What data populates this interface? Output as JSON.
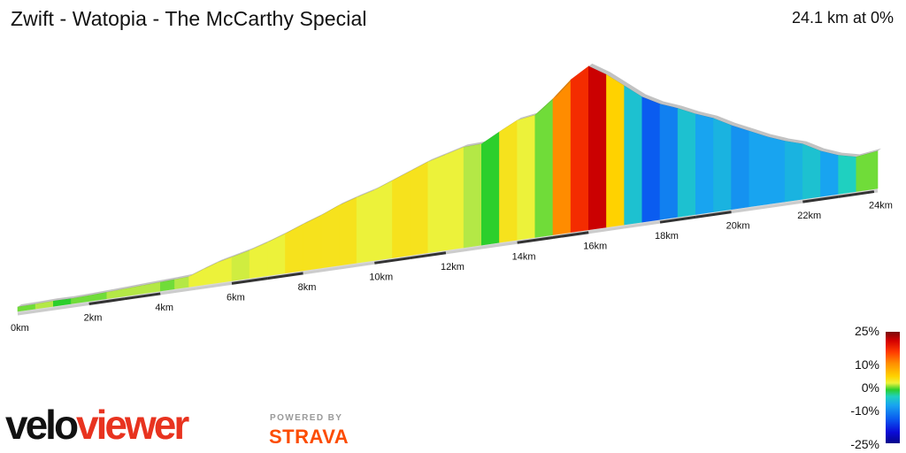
{
  "header": {
    "title": "Zwift - Watopia - The McCarthy Special",
    "summary": "24.1 km at 0%"
  },
  "branding": {
    "velo": "velo",
    "viewer": "viewer",
    "powered_by": "POWERED BY",
    "strava": "STRAVA"
  },
  "gradient_scale": {
    "labels": [
      "25%",
      "10%",
      "0%",
      "-10%",
      "-25%"
    ]
  },
  "chart_data": {
    "type": "area",
    "title": "Zwift - Watopia - The McCarthy Special",
    "xlabel": "",
    "ylabel": "",
    "x_unit": "km",
    "xlim": [
      0,
      24.1
    ],
    "x_ticks": [
      0,
      2,
      4,
      6,
      8,
      10,
      12,
      14,
      16,
      18,
      20,
      22,
      24
    ],
    "x_tick_labels": [
      "0km",
      "2km",
      "4km",
      "6km",
      "8km",
      "10km",
      "12km",
      "14km",
      "16km",
      "18km",
      "20km",
      "22km",
      "24km"
    ],
    "elevation_relative": {
      "x": [
        0,
        0.5,
        1,
        1.5,
        2,
        2.5,
        3,
        3.5,
        4,
        4.4,
        4.8,
        5.2,
        5.6,
        6,
        6.5,
        7,
        7.5,
        8,
        8.5,
        9,
        9.5,
        10,
        10.5,
        11,
        11.5,
        12,
        12.5,
        13,
        13.5,
        14,
        14.5,
        15,
        15.5,
        16,
        16.5,
        17,
        17.5,
        18,
        18.5,
        19,
        19.5,
        20,
        20.5,
        21,
        21.5,
        22,
        22.5,
        23,
        23.5,
        24.1
      ],
      "y": [
        0,
        0.2,
        0.6,
        0.5,
        0.9,
        1.4,
        2.0,
        2.6,
        3.2,
        3.6,
        4.2,
        8.0,
        11.5,
        14.0,
        17.0,
        21.0,
        25.5,
        30.5,
        35.0,
        40.5,
        44.5,
        48.0,
        53.0,
        58.0,
        63.0,
        66.5,
        70.0,
        70.5,
        77.5,
        84.0,
        86.0,
        96.0,
        108.0,
        116.0,
        108.0,
        98.0,
        88.0,
        81.0,
        76.0,
        70.0,
        65.0,
        58.0,
        52.0,
        46.0,
        41.0,
        37.0,
        30.0,
        25.0,
        22.0,
        24.0
      ]
    },
    "gradient_pct": {
      "x": [
        0,
        0.5,
        1,
        1.5,
        2,
        2.5,
        3,
        3.5,
        4,
        4.4,
        4.8,
        5.2,
        5.6,
        6,
        6.5,
        7,
        7.5,
        8,
        8.5,
        9,
        9.5,
        10,
        10.5,
        11,
        11.5,
        12,
        12.5,
        13,
        13.5,
        14,
        14.5,
        15,
        15.5,
        16,
        16.5,
        17,
        17.5,
        18,
        18.5,
        19,
        19.5,
        20,
        20.5,
        21,
        21.5,
        22,
        22.5,
        23,
        23.5
      ],
      "values": [
        1,
        2,
        0,
        1,
        1,
        2,
        2,
        2,
        1,
        2,
        4,
        4,
        4,
        3,
        4,
        4,
        5,
        5,
        5,
        5,
        4,
        4,
        5,
        5,
        4,
        4,
        2,
        0,
        5,
        4,
        1,
        8,
        12,
        16,
        6,
        -4,
        -10,
        -8,
        -4,
        -6,
        -5,
        -7,
        -6,
        -6,
        -5,
        -4,
        -6,
        -3,
        1
      ]
    },
    "colorbar": {
      "min": -25,
      "max": 25,
      "ticks": [
        25,
        10,
        0,
        -10,
        -25
      ],
      "tick_labels": [
        "25%",
        "10%",
        "0%",
        "-10%",
        "-25%"
      ]
    }
  }
}
